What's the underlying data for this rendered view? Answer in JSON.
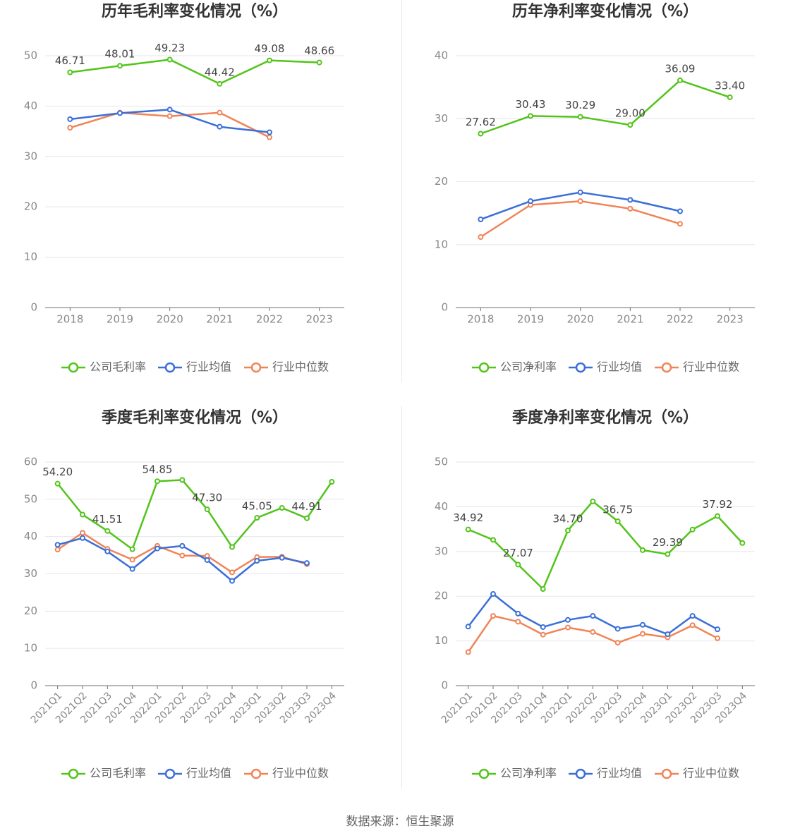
{
  "colors": {
    "company": "#52c41a",
    "industry_avg": "#3a6fd8",
    "industry_median": "#f08457",
    "axis": "#888888",
    "grid": "#e6e6ee",
    "title": "#333333",
    "label": "#444444",
    "legend_text": "#666666"
  },
  "footer": "数据来源：恒生聚源",
  "chart_data": [
    {
      "type": "line",
      "title": "历年毛利率变化情况（%）",
      "x": [
        "2018",
        "2019",
        "2020",
        "2021",
        "2022",
        "2023"
      ],
      "ylim": [
        0,
        50
      ],
      "yticks": [
        0,
        10,
        20,
        30,
        40,
        50
      ],
      "grid": true,
      "legend": "bottom",
      "series": [
        {
          "name": "公司毛利率",
          "color_key": "company",
          "values": [
            46.71,
            48.01,
            49.23,
            44.42,
            49.08,
            48.66
          ],
          "labels": [
            "46.71",
            "48.01",
            "49.23",
            "44.42",
            "49.08",
            "48.66"
          ]
        },
        {
          "name": "行业均值",
          "color_key": "industry_avg",
          "values": [
            37.4,
            38.6,
            39.3,
            35.9,
            34.8,
            null
          ]
        },
        {
          "name": "行业中位数",
          "color_key": "industry_median",
          "values": [
            35.7,
            38.7,
            38.0,
            38.7,
            33.8,
            null
          ]
        }
      ]
    },
    {
      "type": "line",
      "title": "历年净利率变化情况（%）",
      "x": [
        "2018",
        "2019",
        "2020",
        "2021",
        "2022",
        "2023"
      ],
      "ylim": [
        0,
        40
      ],
      "yticks": [
        0,
        10,
        20,
        30,
        40
      ],
      "grid": true,
      "legend": "bottom",
      "series": [
        {
          "name": "公司净利率",
          "color_key": "company",
          "values": [
            27.62,
            30.43,
            30.29,
            29.0,
            36.09,
            33.4
          ],
          "labels": [
            "27.62",
            "30.43",
            "30.29",
            "29.00",
            "36.09",
            "33.40"
          ]
        },
        {
          "name": "行业均值",
          "color_key": "industry_avg",
          "values": [
            14.0,
            16.9,
            18.3,
            17.1,
            15.3,
            null
          ]
        },
        {
          "name": "行业中位数",
          "color_key": "industry_median",
          "values": [
            11.2,
            16.3,
            16.9,
            15.7,
            13.3,
            null
          ]
        }
      ]
    },
    {
      "type": "line",
      "title": "季度毛利率变化情况（%）",
      "x": [
        "2021Q1",
        "2021Q2",
        "2021Q3",
        "2021Q4",
        "2022Q1",
        "2022Q2",
        "2022Q3",
        "2022Q4",
        "2023Q1",
        "2023Q2",
        "2023Q3",
        "2023Q4"
      ],
      "ylim": [
        0,
        60
      ],
      "yticks": [
        0,
        10,
        20,
        30,
        40,
        50,
        60
      ],
      "grid": true,
      "legend": "bottom",
      "series": [
        {
          "name": "公司毛利率",
          "color_key": "company",
          "values": [
            54.2,
            45.9,
            41.51,
            36.6,
            54.85,
            55.2,
            47.3,
            37.2,
            45.05,
            47.7,
            44.91,
            54.7
          ],
          "labels": [
            "54.20",
            "",
            "41.51",
            "",
            "54.85",
            "",
            "47.30",
            "",
            "45.05",
            "",
            "44.91",
            ""
          ]
        },
        {
          "name": "行业均值",
          "color_key": "industry_avg",
          "values": [
            37.8,
            39.6,
            36.0,
            31.3,
            36.8,
            37.5,
            33.7,
            28.1,
            33.5,
            34.3,
            32.9,
            null
          ]
        },
        {
          "name": "行业中位数",
          "color_key": "industry_median",
          "values": [
            36.5,
            41.0,
            36.7,
            33.8,
            37.5,
            34.9,
            34.8,
            30.4,
            34.5,
            34.6,
            32.6,
            null
          ]
        }
      ]
    },
    {
      "type": "line",
      "title": "季度净利率变化情况（%）",
      "x": [
        "2021Q1",
        "2021Q2",
        "2021Q3",
        "2021Q4",
        "2022Q1",
        "2022Q2",
        "2022Q3",
        "2022Q4",
        "2023Q1",
        "2023Q2",
        "2023Q3",
        "2023Q4"
      ],
      "ylim": [
        0,
        50
      ],
      "yticks": [
        0,
        10,
        20,
        30,
        40,
        50
      ],
      "grid": true,
      "legend": "bottom",
      "series": [
        {
          "name": "公司净利率",
          "color_key": "company",
          "values": [
            34.92,
            32.6,
            27.07,
            21.6,
            34.7,
            41.2,
            36.75,
            30.3,
            29.39,
            34.9,
            37.92,
            31.9
          ],
          "labels": [
            "34.92",
            "",
            "27.07",
            "",
            "34.70",
            "",
            "36.75",
            "",
            "29.39",
            "",
            "37.92",
            ""
          ]
        },
        {
          "name": "行业均值",
          "color_key": "industry_avg",
          "values": [
            13.2,
            20.5,
            16.1,
            13.1,
            14.7,
            15.6,
            12.7,
            13.6,
            11.5,
            15.6,
            12.6,
            null
          ]
        },
        {
          "name": "行业中位数",
          "color_key": "industry_median",
          "values": [
            7.5,
            15.6,
            14.3,
            11.4,
            13.0,
            12.0,
            9.6,
            11.6,
            10.8,
            13.5,
            10.6,
            null
          ]
        }
      ]
    }
  ]
}
